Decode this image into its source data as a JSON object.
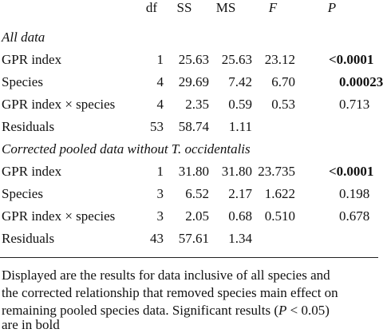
{
  "table": {
    "header": [
      "df",
      "SS",
      "MS",
      "F",
      "P"
    ],
    "sections": [
      {
        "title": "All data",
        "rows": [
          {
            "cells": [
              "GPR index",
              "1",
              "25.63",
              "25.63",
              "23.12",
              "<0.0001"
            ],
            "bold_p": true
          },
          {
            "cells": [
              "Species",
              "4",
              "29.69",
              "7.42",
              "6.70",
              "0.00023"
            ],
            "bold_p": true
          },
          {
            "cells": [
              "GPR index × species",
              "4",
              "2.35",
              "0.59",
              "0.53",
              "0.713"
            ],
            "bold_p": false
          },
          {
            "cells": [
              "Residuals",
              "53",
              "58.74",
              "1.11",
              "",
              ""
            ],
            "bold_p": false
          }
        ]
      },
      {
        "title": "Corrected pooled data without T. occidentalis",
        "rows": [
          {
            "cells": [
              "GPR index",
              "1",
              "31.80",
              "31.80",
              "23.735",
              "<0.0001"
            ],
            "bold_p": true
          },
          {
            "cells": [
              "Species",
              "3",
              "6.52",
              "2.17",
              "1.622",
              "0.198"
            ],
            "bold_p": false
          },
          {
            "cells": [
              "GPR index × species",
              "3",
              "2.05",
              "0.68",
              "0.510",
              "0.678"
            ],
            "bold_p": false
          },
          {
            "cells": [
              "Residuals",
              "43",
              "57.61",
              "1.34",
              "",
              ""
            ],
            "bold_p": false
          }
        ]
      }
    ]
  },
  "footnote": {
    "line1": "Displayed are the results for data inclusive of all species and",
    "line2": "the corrected relationship that removed species main effect on",
    "line3a": "remaining pooled species data. Significant results (",
    "line3b": "P",
    "line3c": " < 0.05)",
    "line4": "are in bold"
  }
}
